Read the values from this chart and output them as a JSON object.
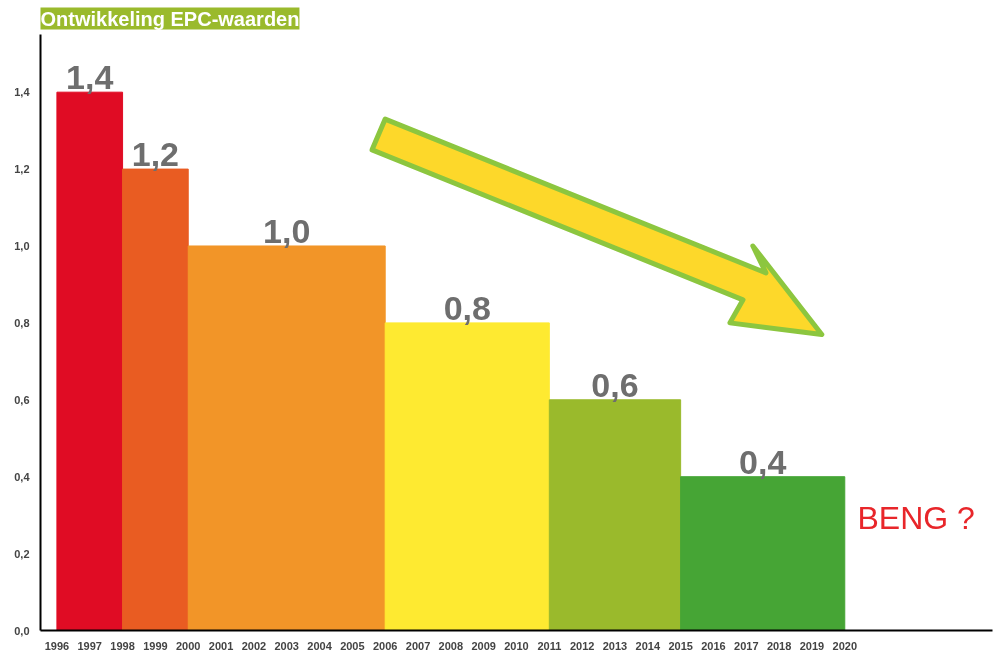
{
  "chart_data": {
    "type": "histogram",
    "title": "Ontwikkeling EPC-waarden",
    "bins": [
      1996,
      1998,
      2000,
      2006,
      2011,
      2015,
      2020
    ],
    "values": [
      1.4,
      1.2,
      1.0,
      0.8,
      0.6,
      0.4
    ],
    "colors": [
      "#e00c24",
      "#e95c22",
      "#f29528",
      "#feea31",
      "#9aba2c",
      "#46a535"
    ],
    "value_labels": [
      "1,4",
      "1,2",
      "1,0",
      "0,8",
      "0,6",
      "0,4"
    ],
    "xlim": [
      1995.5,
      2024.5
    ],
    "xticks": [
      1996,
      1997,
      1998,
      1999,
      2000,
      2001,
      2002,
      2003,
      2004,
      2005,
      2006,
      2007,
      2008,
      2009,
      2010,
      2011,
      2012,
      2013,
      2014,
      2015,
      2016,
      2017,
      2018,
      2019,
      2020
    ],
    "ylim": [
      0,
      1.55
    ],
    "yticks": [
      {
        "value": 0,
        "label": "0,0"
      },
      {
        "value": 0.2,
        "label": "0,2"
      },
      {
        "value": 0.4,
        "label": "0,4"
      },
      {
        "value": 0.6,
        "label": "0,6"
      },
      {
        "value": 0.8,
        "label": "0,8"
      },
      {
        "value": 1.0,
        "label": "1,0"
      },
      {
        "value": 1.2,
        "label": "1,2"
      },
      {
        "value": 1.4,
        "label": "1,4"
      }
    ],
    "annotations": [
      "BENG ?"
    ],
    "grid": false
  }
}
